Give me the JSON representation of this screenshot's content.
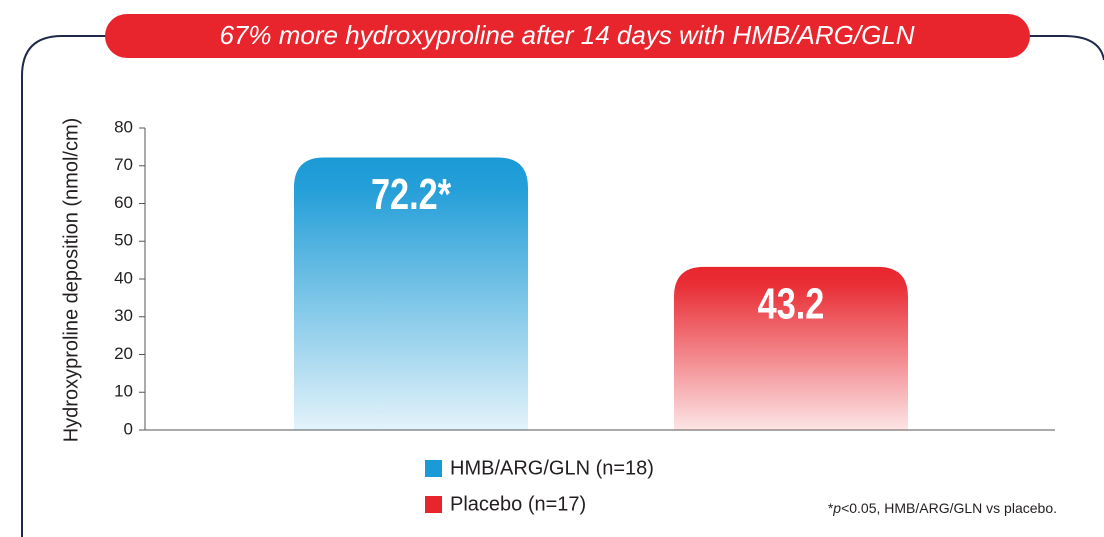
{
  "chart_data": {
    "type": "bar",
    "title": "67% more hydroxyproline after 14 days with HMB/ARG/GLN",
    "y_label": "Hydroxyproline deposition (nmol/cm)",
    "series": [
      {
        "name": "HMB/ARG/GLN (n=18)",
        "color": "#1a9ad6",
        "values": [
          72.2
        ],
        "value_labels": [
          "72.2*"
        ]
      },
      {
        "name": "Placebo (n=17)",
        "color": "#e8252d",
        "values": [
          43.2
        ]
      }
    ],
    "ylim": [
      0,
      80
    ],
    "yticks": [
      0,
      10,
      20,
      30,
      40,
      50,
      60,
      70,
      80
    ],
    "footnote": [
      "*",
      "p",
      "<0.05, HMB/ARG/GLN vs placebo."
    ]
  }
}
